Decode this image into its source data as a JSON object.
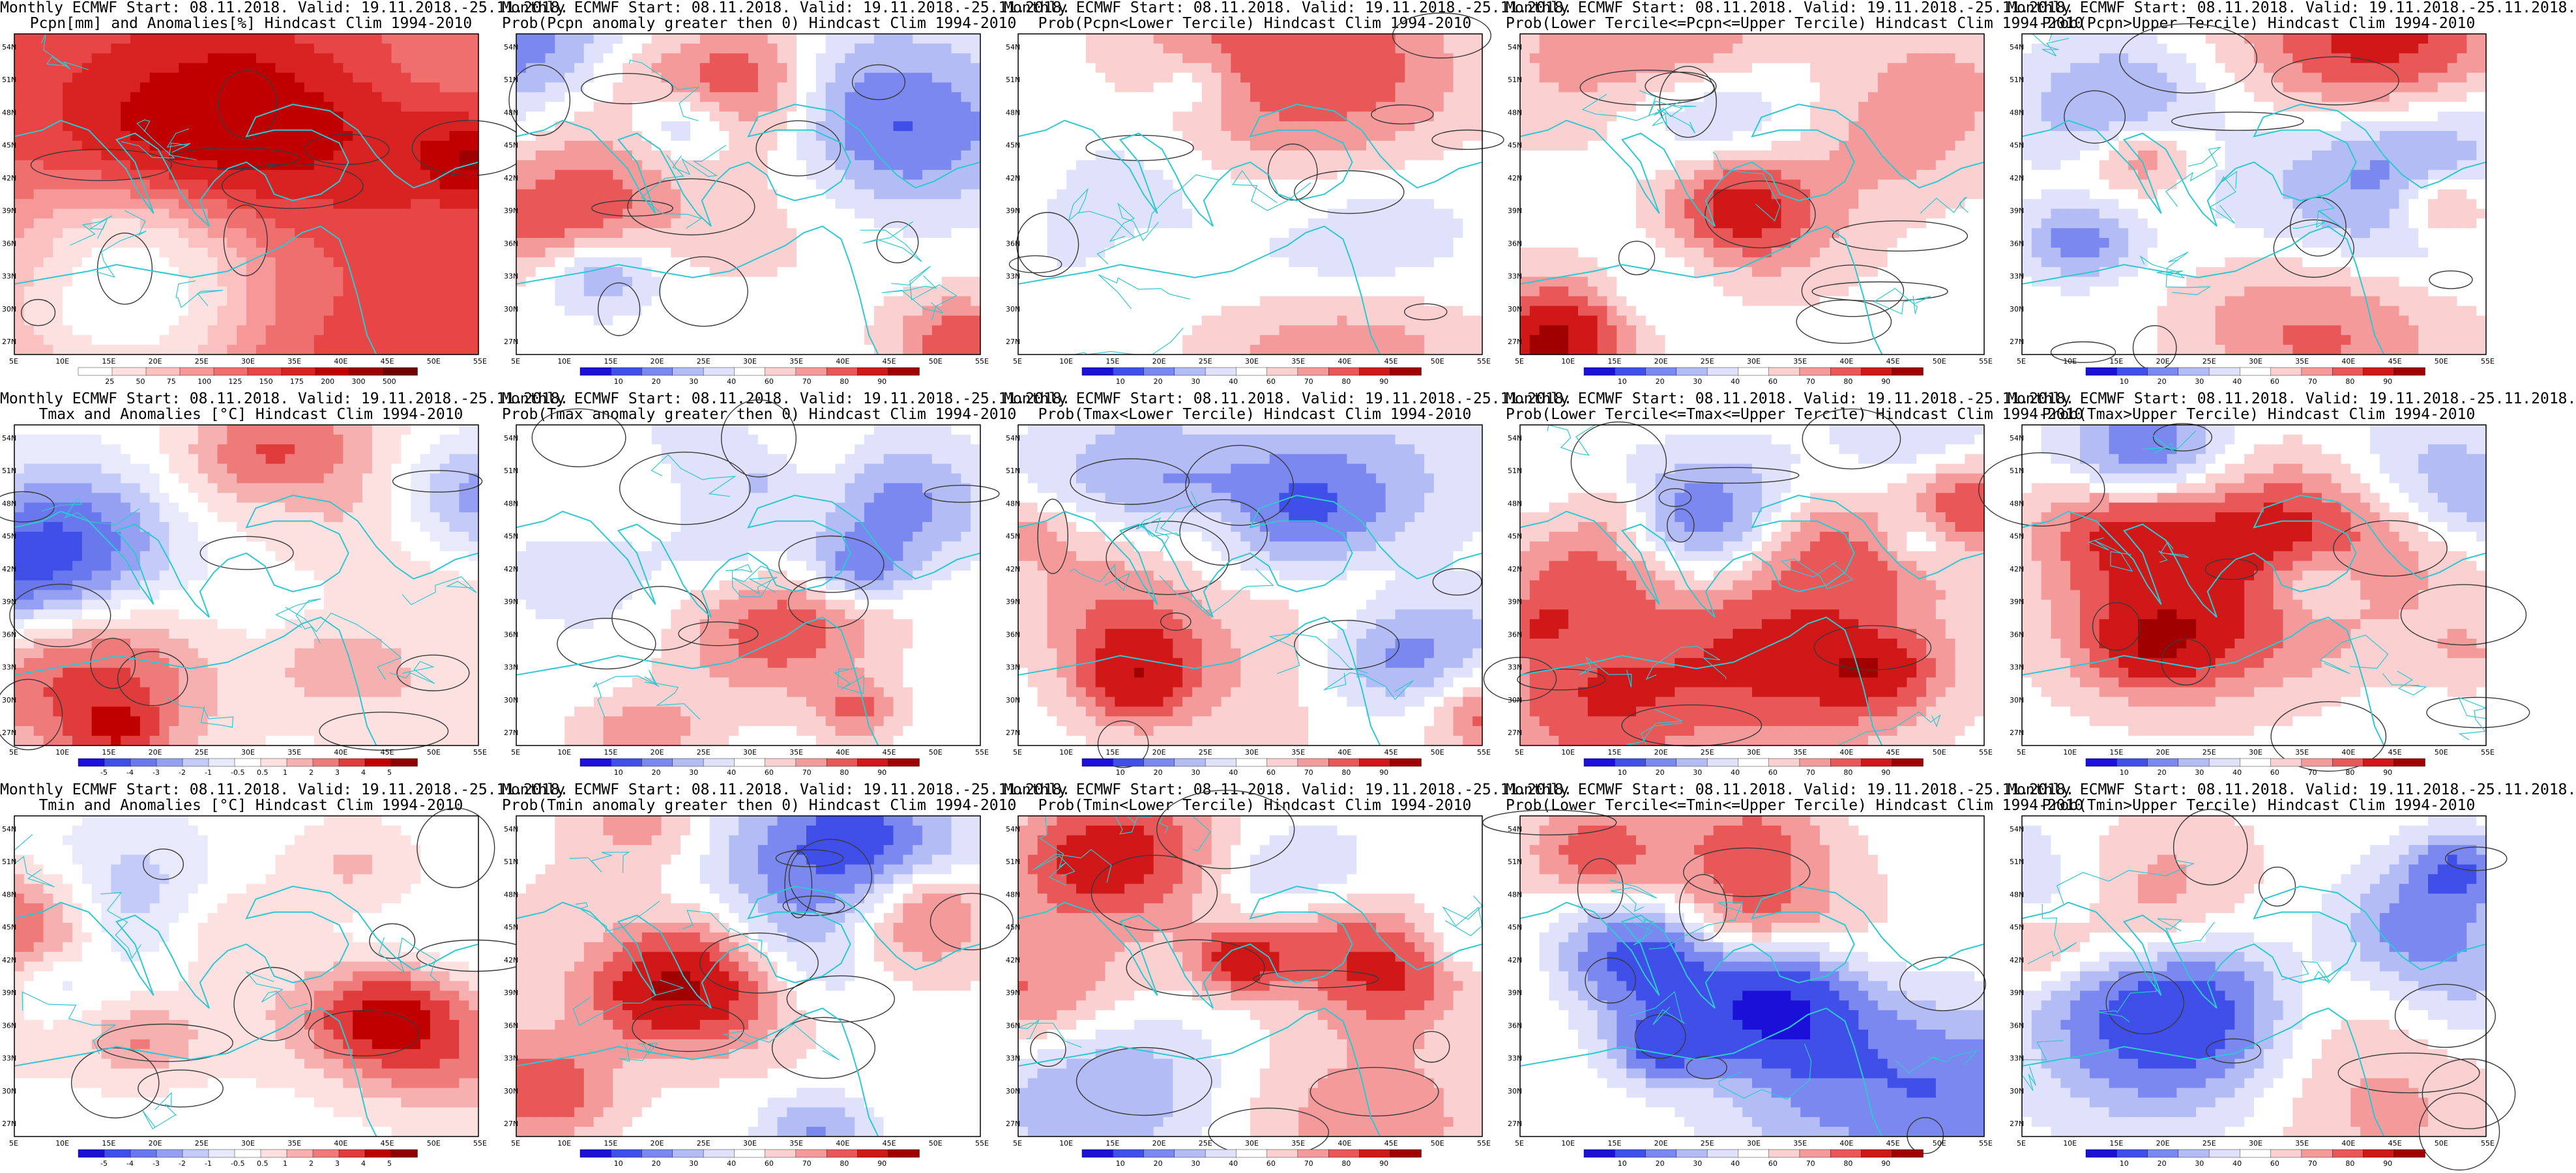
{
  "panels": [
    {
      "title_line1": "Monthly ECMWF Start: 08.11.2018. Valid: 19.11.2018.-25.11.2018.",
      "title_line2": "Pcpn[mm] and Anomalies[%] Hindcast Clim 1994-2010",
      "scale": "anom",
      "colorbar_labels": [
        "25",
        "50",
        "75",
        "100",
        "125",
        "150",
        "175",
        "200",
        "300",
        "500"
      ]
    },
    {
      "title_line1": "Monthly ECMWF Start: 08.11.2018. Valid: 19.11.2018.-25.11.2018.",
      "title_line2": "Prob(Pcpn anomaly greater then 0) Hindcast Clim 1994-2010",
      "scale": "prob",
      "colorbar_labels": [
        "10",
        "20",
        "30",
        "40",
        "60",
        "70",
        "80",
        "90"
      ]
    },
    {
      "title_line1": "Monthly ECMWF Start: 08.11.2018. Valid: 19.11.2018.-25.11.2018.",
      "title_line2": "Prob(Pcpn<Lower Tercile) Hindcast Clim 1994-2010",
      "scale": "prob",
      "colorbar_labels": [
        "10",
        "20",
        "30",
        "40",
        "60",
        "70",
        "80",
        "90"
      ]
    },
    {
      "title_line1": "Monthly ECMWF Start: 08.11.2018. Valid: 19.11.2018.-25.11.2018.",
      "title_line2": "Prob(Lower Tercile<=Pcpn<=Upper Tercile) Hindcast Clim 1994-2010",
      "scale": "prob",
      "colorbar_labels": [
        "10",
        "20",
        "30",
        "40",
        "60",
        "70",
        "80",
        "90"
      ]
    },
    {
      "title_line1": "Monthly ECMWF Start: 08.11.2018. Valid: 19.11.2018.-25.11.2018.",
      "title_line2": "Prob(Pcpn>Upper Tercile) Hindcast Clim 1994-2010",
      "scale": "prob",
      "colorbar_labels": [
        "10",
        "20",
        "30",
        "40",
        "60",
        "70",
        "80",
        "90"
      ]
    },
    {
      "title_line1": "Monthly ECMWF Start: 08.11.2018. Valid: 19.11.2018.-25.11.2018.",
      "title_line2": "Tmax and Anomalies [°C] Hindcast Clim 1994-2010",
      "scale": "temp",
      "colorbar_labels": [
        "-5",
        "-4",
        "-3",
        "-2",
        "-1",
        "-0.5",
        "0.5",
        "1",
        "2",
        "3",
        "4",
        "5"
      ]
    },
    {
      "title_line1": "Monthly ECMWF Start: 08.11.2018. Valid: 19.11.2018.-25.11.2018.",
      "title_line2": "Prob(Tmax anomaly greater then 0) Hindcast Clim 1994-2010",
      "scale": "prob",
      "colorbar_labels": [
        "10",
        "20",
        "30",
        "40",
        "60",
        "70",
        "80",
        "90"
      ]
    },
    {
      "title_line1": "Monthly ECMWF Start: 08.11.2018. Valid: 19.11.2018.-25.11.2018.",
      "title_line2": "Prob(Tmax<Lower Tercile) Hindcast Clim 1994-2010",
      "scale": "prob",
      "colorbar_labels": [
        "10",
        "20",
        "30",
        "40",
        "60",
        "70",
        "80",
        "90"
      ]
    },
    {
      "title_line1": "Monthly ECMWF Start: 08.11.2018. Valid: 19.11.2018.-25.11.2018.",
      "title_line2": "Prob(Lower Tercile<=Tmax<=Upper Tercile) Hindcast Clim 1994-2010",
      "scale": "prob",
      "colorbar_labels": [
        "10",
        "20",
        "30",
        "40",
        "60",
        "70",
        "80",
        "90"
      ]
    },
    {
      "title_line1": "Monthly ECMWF Start: 08.11.2018. Valid: 19.11.2018.-25.11.2018.",
      "title_line2": "Prob(Tmax>Upper Tercile) Hindcast Clim 1994-2010",
      "scale": "prob",
      "colorbar_labels": [
        "10",
        "20",
        "30",
        "40",
        "60",
        "70",
        "80",
        "90"
      ]
    },
    {
      "title_line1": "Monthly ECMWF Start: 08.11.2018. Valid: 19.11.2018.-25.11.2018.",
      "title_line2": "Tmin and Anomalies [°C] Hindcast Clim 1994-2010",
      "scale": "temp",
      "colorbar_labels": [
        "-5",
        "-4",
        "-3",
        "-2",
        "-1",
        "-0.5",
        "0.5",
        "1",
        "2",
        "3",
        "4",
        "5"
      ]
    },
    {
      "title_line1": "Monthly ECMWF Start: 08.11.2018. Valid: 19.11.2018.-25.11.2018.",
      "title_line2": "Prob(Tmin anomaly greater then 0) Hindcast Clim 1994-2010",
      "scale": "prob",
      "colorbar_labels": [
        "10",
        "20",
        "30",
        "40",
        "60",
        "70",
        "80",
        "90"
      ]
    },
    {
      "title_line1": "Monthly ECMWF Start: 08.11.2018. Valid: 19.11.2018.-25.11.2018.",
      "title_line2": "Prob(Tmin<Lower Tercile) Hindcast Clim 1994-2010",
      "scale": "prob",
      "colorbar_labels": [
        "10",
        "20",
        "30",
        "40",
        "60",
        "70",
        "80",
        "90"
      ]
    },
    {
      "title_line1": "Monthly ECMWF Start: 08.11.2018. Valid: 19.11.2018.-25.11.2018.",
      "title_line2": "Prob(Lower Tercile<=Tmin<=Upper Tercile) Hindcast Clim 1994-2010",
      "scale": "prob",
      "colorbar_labels": [
        "10",
        "20",
        "30",
        "40",
        "60",
        "70",
        "80",
        "90"
      ]
    },
    {
      "title_line1": "Monthly ECMWF Start: 08.11.2018. Valid: 19.11.2018.-25.11.2018.",
      "title_line2": "Prob(Tmin>Upper Tercile) Hindcast Clim 1994-2010",
      "scale": "prob",
      "colorbar_labels": [
        "10",
        "20",
        "30",
        "40",
        "60",
        "70",
        "80",
        "90"
      ]
    }
  ],
  "lon_ticks": [
    "5E",
    "10E",
    "15E",
    "20E",
    "25E",
    "30E",
    "35E",
    "40E",
    "45E",
    "50E",
    "55E"
  ],
  "lat_ticks": [
    "54N",
    "51N",
    "48N",
    "45N",
    "42N",
    "39N",
    "36N",
    "33N",
    "30N",
    "27N"
  ],
  "colors": {
    "coast": "#2ec8d2",
    "contour": "#3a3a3a",
    "frame": "#000000",
    "prob_scale": [
      "#1a10d8",
      "#3f4fe8",
      "#7a88f0",
      "#b4bcf6",
      "#dfe2fa",
      "#ffffff",
      "#fbd0d0",
      "#f59a9a",
      "#e85858",
      "#d01818",
      "#a00000"
    ],
    "anom_scale": [
      "#ffffff",
      "#fde0e0",
      "#fbc0c0",
      "#f69898",
      "#ef6f6f",
      "#e84646",
      "#d92222",
      "#c00000",
      "#9c0000",
      "#700000"
    ],
    "temp_scale": [
      "#1a10d8",
      "#3f4fe8",
      "#6a78ee",
      "#95a0f3",
      "#c4cbf8",
      "#e8eafc",
      "#ffffff",
      "#fde0e0",
      "#f7b0b0",
      "#ef7a7a",
      "#e03c3c",
      "#c00000",
      "#900000"
    ]
  }
}
